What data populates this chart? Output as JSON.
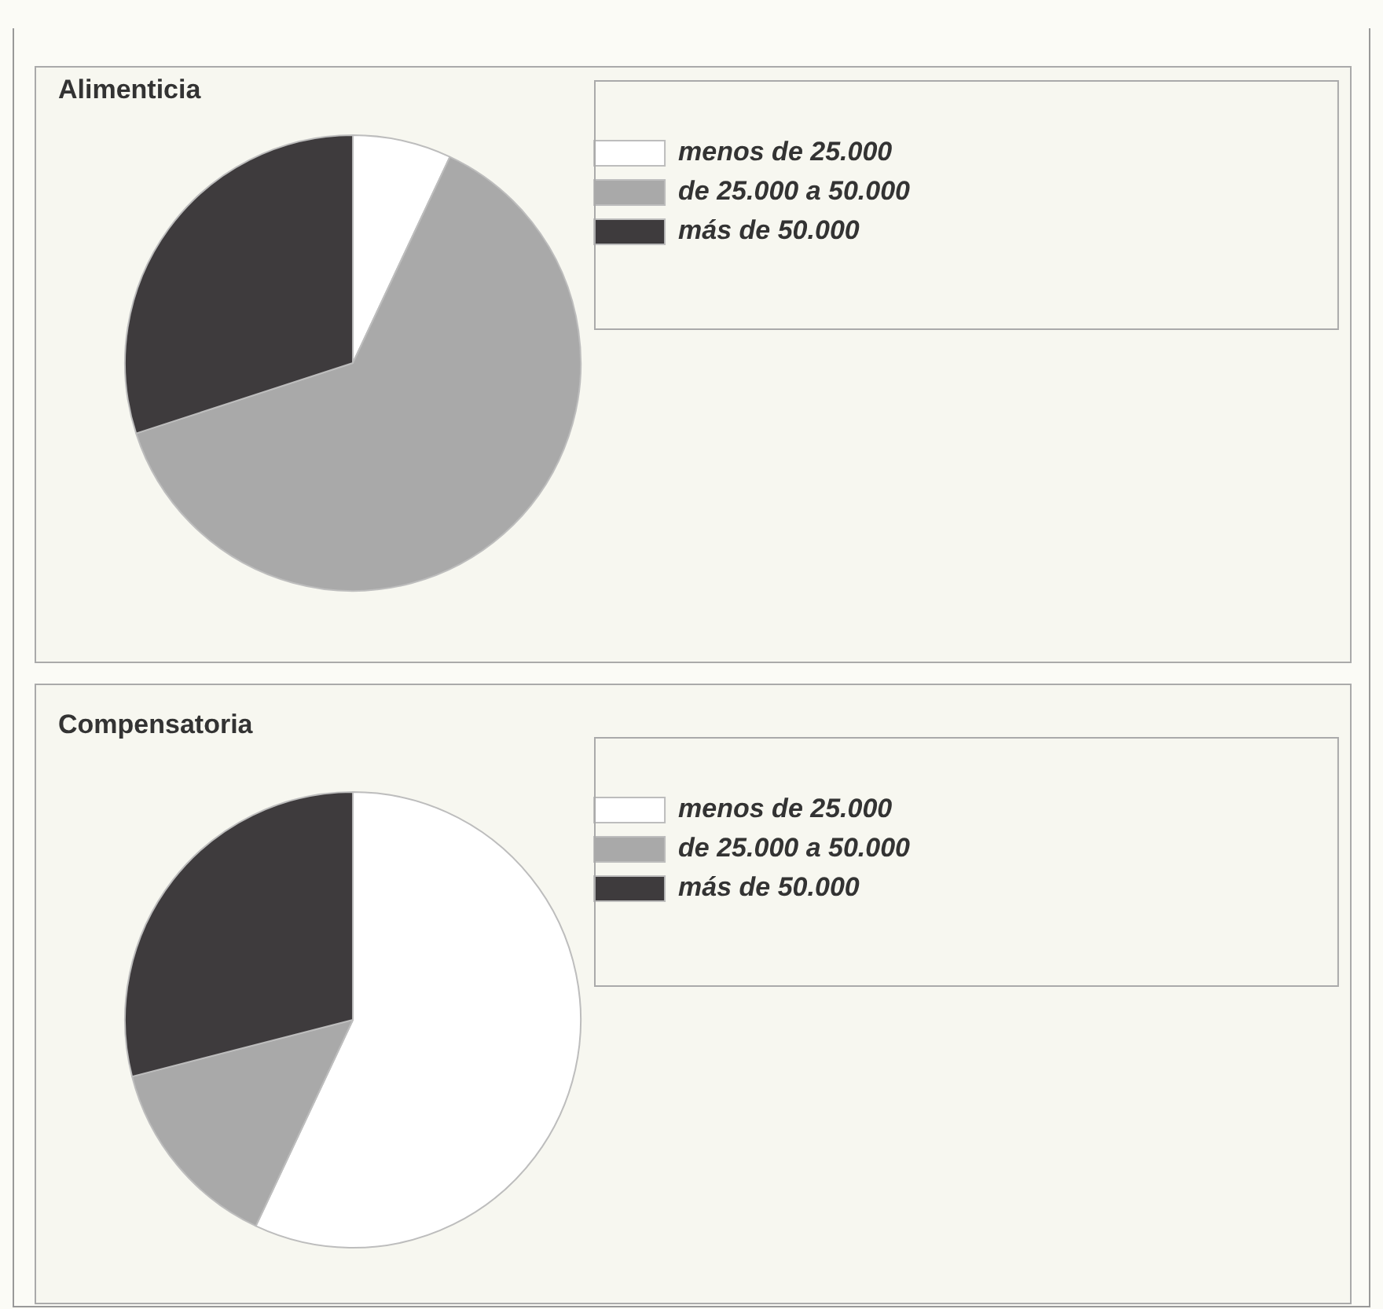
{
  "chart_data": [
    {
      "type": "pie",
      "title": "Alimenticia",
      "categories": [
        "menos de 25.000",
        "de 25.000 a 50.000",
        "más de 50.000"
      ],
      "values": [
        7,
        63,
        30
      ],
      "colors": [
        "#ffffff",
        "#a9a9a9",
        "#3e3b3d"
      ],
      "legend": "top right"
    },
    {
      "type": "pie",
      "title": "Compensatoria",
      "categories": [
        "menos de 25.000",
        "de 25.000 a 50.000",
        "más de 50.000"
      ],
      "values": [
        57,
        14,
        29
      ],
      "colors": [
        "#ffffff",
        "#a9a9a9",
        "#3e3b3d"
      ],
      "legend": "top right"
    }
  ]
}
